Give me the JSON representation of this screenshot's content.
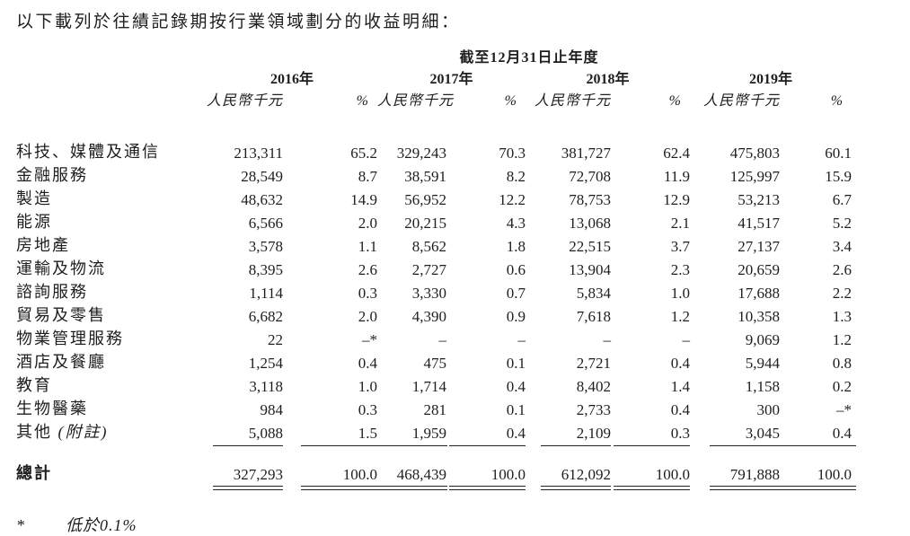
{
  "title": "以下載列於往績記錄期按行業領域劃分的收益明細：",
  "table": {
    "period_header": "截至12月31日止年度",
    "years": [
      "2016年",
      "2017年",
      "2018年",
      "2019年"
    ],
    "amount_header": "人民幣千元",
    "pct_header": "%",
    "rows": [
      {
        "label": "科技、媒體及通信",
        "values": [
          "213,311",
          "65.2",
          "329,243",
          "70.3",
          "381,727",
          "62.4",
          "475,803",
          "60.1"
        ]
      },
      {
        "label": "金融服務",
        "values": [
          "28,549",
          "8.7",
          "38,591",
          "8.2",
          "72,708",
          "11.9",
          "125,997",
          "15.9"
        ]
      },
      {
        "label": "製造",
        "values": [
          "48,632",
          "14.9",
          "56,952",
          "12.2",
          "78,753",
          "12.9",
          "53,213",
          "6.7"
        ]
      },
      {
        "label": "能源",
        "values": [
          "6,566",
          "2.0",
          "20,215",
          "4.3",
          "13,068",
          "2.1",
          "41,517",
          "5.2"
        ]
      },
      {
        "label": "房地產",
        "values": [
          "3,578",
          "1.1",
          "8,562",
          "1.8",
          "22,515",
          "3.7",
          "27,137",
          "3.4"
        ]
      },
      {
        "label": "運輸及物流",
        "values": [
          "8,395",
          "2.6",
          "2,727",
          "0.6",
          "13,904",
          "2.3",
          "20,659",
          "2.6"
        ]
      },
      {
        "label": "諮詢服務",
        "values": [
          "1,114",
          "0.3",
          "3,330",
          "0.7",
          "5,834",
          "1.0",
          "17,688",
          "2.2"
        ]
      },
      {
        "label": "貿易及零售",
        "values": [
          "6,682",
          "2.0",
          "4,390",
          "0.9",
          "7,618",
          "1.2",
          "10,358",
          "1.3"
        ]
      },
      {
        "label": "物業管理服務",
        "values": [
          "22",
          "–*",
          "–",
          "–",
          "–",
          "–",
          "9,069",
          "1.2"
        ]
      },
      {
        "label": "酒店及餐廳",
        "values": [
          "1,254",
          "0.4",
          "475",
          "0.1",
          "2,721",
          "0.4",
          "5,944",
          "0.8"
        ]
      },
      {
        "label": "教育",
        "values": [
          "3,118",
          "1.0",
          "1,714",
          "0.4",
          "8,402",
          "1.4",
          "1,158",
          "0.2"
        ]
      },
      {
        "label": "生物醫藥",
        "values": [
          "984",
          "0.3",
          "281",
          "0.1",
          "2,733",
          "0.4",
          "300",
          "–*"
        ]
      },
      {
        "label": "其他 ",
        "label_note": "(附註)",
        "values": [
          "5,088",
          "1.5",
          "1,959",
          "0.4",
          "2,109",
          "0.3",
          "3,045",
          "0.4"
        ]
      }
    ],
    "total": {
      "label": "總計",
      "values": [
        "327,293",
        "100.0",
        "468,439",
        "100.0",
        "612,092",
        "100.0",
        "791,888",
        "100.0"
      ]
    }
  },
  "footnote": {
    "marker": "*",
    "text": "低於0.1%"
  }
}
